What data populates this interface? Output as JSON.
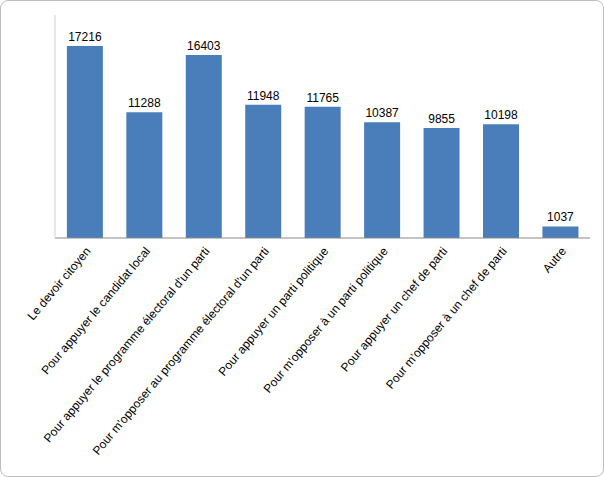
{
  "chart_data": {
    "type": "bar",
    "categories": [
      "Le devoir citoyen",
      "Pour appuyer le candidat local",
      "Pour appuyer le programme électoral d'un parti",
      "Pour m'opposer au programme électoral d'un parti",
      "Pour appuyer un parti politique",
      "Pour m'opposer à un parti politique",
      "Pour appuyer un chef de parti",
      "Pour m'opposer à un chef de parti",
      "Autre"
    ],
    "values": [
      17216,
      11288,
      16403,
      11948,
      11765,
      10387,
      9855,
      10198,
      1037
    ],
    "color": "#4a7ebb",
    "ylim": [
      0,
      20000
    ],
    "data_labels": true,
    "tick_labels": "x",
    "grid": false
  }
}
